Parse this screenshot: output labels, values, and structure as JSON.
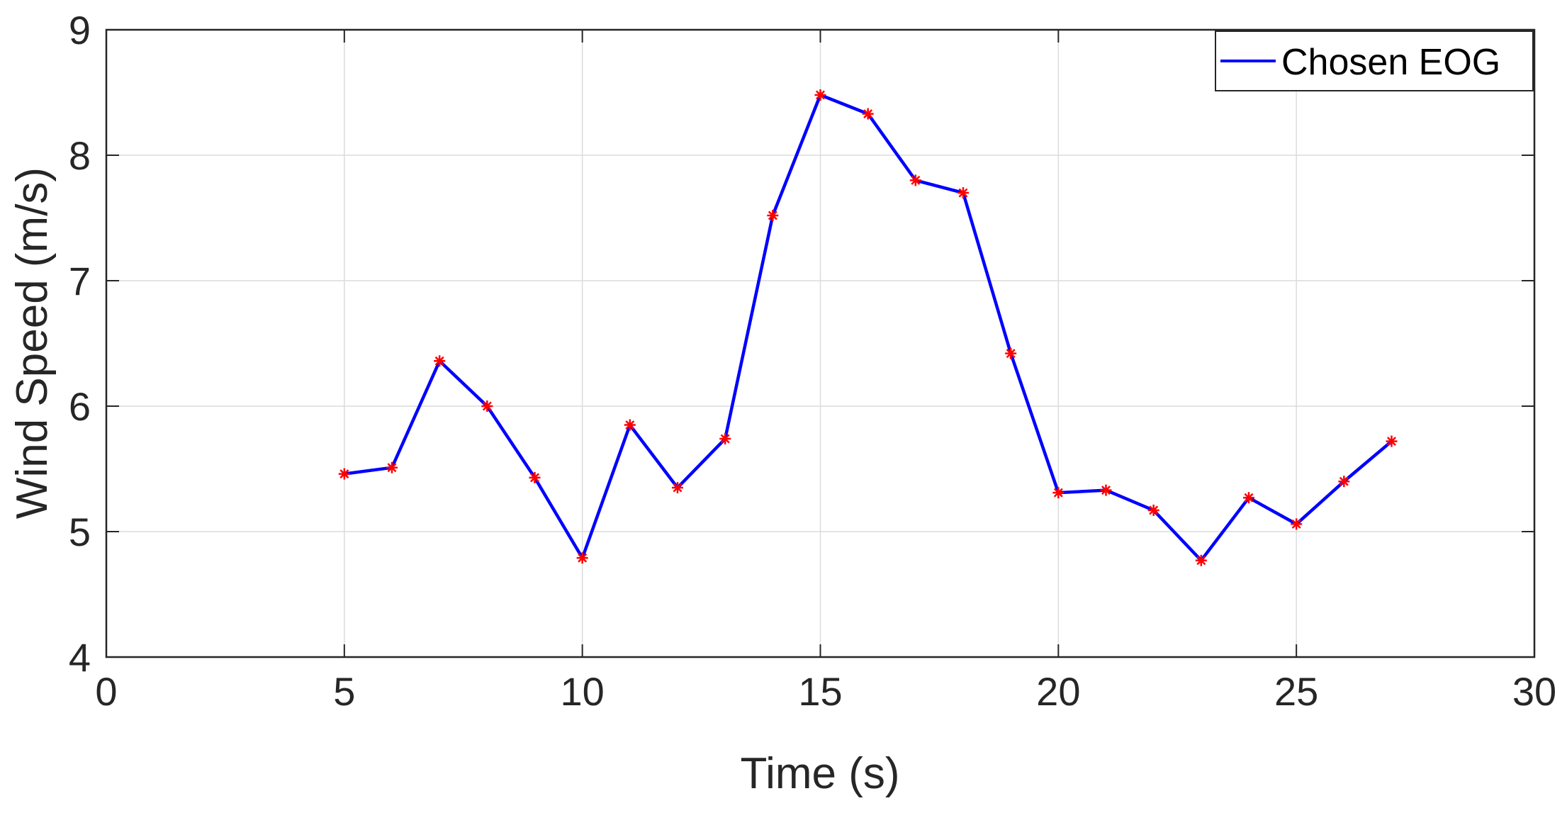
{
  "chart_data": {
    "type": "line",
    "title": "",
    "xlabel": "Time (s)",
    "ylabel": "Wind Speed  (m/s)",
    "xlim": [
      0,
      30
    ],
    "ylim": [
      4,
      9
    ],
    "xticks": [
      "0",
      "5",
      "10",
      "15",
      "20",
      "25",
      "30"
    ],
    "yticks": [
      "4",
      "5",
      "6",
      "7",
      "8",
      "9"
    ],
    "grid": true,
    "legend_position": "top-right",
    "series": [
      {
        "name": "Chosen EOG",
        "color": "#0000ff",
        "marker": "asterisk",
        "marker_color": "#ff0000",
        "x": [
          5,
          6,
          7,
          8,
          9,
          10,
          11,
          12,
          13,
          14,
          15,
          16,
          17,
          18,
          19,
          20,
          21,
          22,
          23,
          24,
          25,
          26,
          27
        ],
        "y": [
          5.46,
          5.51,
          6.36,
          6.0,
          5.43,
          4.79,
          5.85,
          5.35,
          5.74,
          7.52,
          8.48,
          8.33,
          7.8,
          7.7,
          6.42,
          5.31,
          5.33,
          5.17,
          4.77,
          5.27,
          5.06,
          5.4,
          5.72
        ]
      }
    ]
  }
}
